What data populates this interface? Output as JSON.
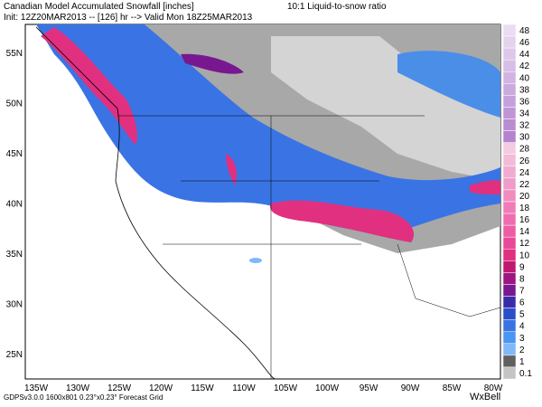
{
  "header": {
    "title": "Canadian Model Accumulated Snowfall [inches]",
    "ratio": "10:1 Liquid-to-snow ratio",
    "init": "Init: 12Z20MAR2013 -- [126] hr --> Valid Mon 18Z25MAR2013"
  },
  "latitudes": [
    "55N",
    "50N",
    "45N",
    "40N",
    "35N",
    "30N",
    "25N"
  ],
  "longitudes": [
    "135W",
    "130W",
    "125W",
    "120W",
    "115W",
    "110W",
    "105W",
    "100W",
    "95W",
    "90W",
    "85W",
    "80W"
  ],
  "colorbar": [
    {
      "label": "48",
      "color": "#eadcf2"
    },
    {
      "label": "46",
      "color": "#e4d2ee"
    },
    {
      "label": "44",
      "color": "#dec8ea"
    },
    {
      "label": "42",
      "color": "#d8bee6"
    },
    {
      "label": "40",
      "color": "#d2b4e2"
    },
    {
      "label": "38",
      "color": "#ccaade"
    },
    {
      "label": "36",
      "color": "#c6a0da"
    },
    {
      "label": "34",
      "color": "#c096d6"
    },
    {
      "label": "32",
      "color": "#ba8cd2"
    },
    {
      "label": "30",
      "color": "#b482ce"
    },
    {
      "label": "28",
      "color": "#f4cce0"
    },
    {
      "label": "26",
      "color": "#f2bcd8"
    },
    {
      "label": "24",
      "color": "#f0acd0"
    },
    {
      "label": "22",
      "color": "#f09cc8"
    },
    {
      "label": "20",
      "color": "#f08cc0"
    },
    {
      "label": "18",
      "color": "#f07cb8"
    },
    {
      "label": "16",
      "color": "#f06cb0"
    },
    {
      "label": "14",
      "color": "#ee5ca4"
    },
    {
      "label": "12",
      "color": "#ea4898"
    },
    {
      "label": "10",
      "color": "#e0307f"
    },
    {
      "label": "9",
      "color": "#c01870"
    },
    {
      "label": "8",
      "color": "#a01480"
    },
    {
      "label": "7",
      "color": "#781890"
    },
    {
      "label": "6",
      "color": "#3a2ca8"
    },
    {
      "label": "5",
      "color": "#2a50c8"
    },
    {
      "label": "4",
      "color": "#3a74e4"
    },
    {
      "label": "3",
      "color": "#4a96f2"
    },
    {
      "label": "2",
      "color": "#80b8f8"
    },
    {
      "label": "1",
      "color": "#606060"
    },
    {
      "label": "0.1",
      "color": "#c4c4c4"
    }
  ],
  "footer": {
    "grid": "GDPSv3.0.0 1600x801 0.23°x0.23° Forecast Grid",
    "logo": "WxBell"
  }
}
